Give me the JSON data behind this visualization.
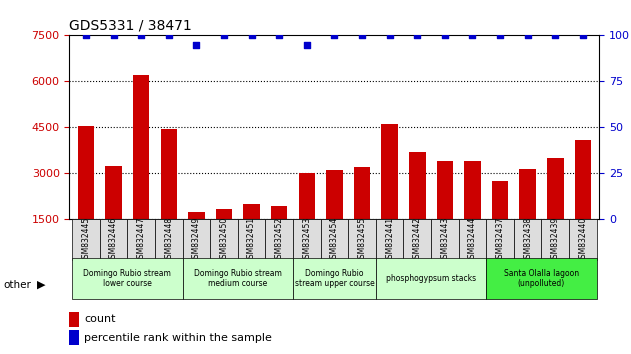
{
  "title": "GDS5331 / 38471",
  "samples": [
    "GSM832445",
    "GSM832446",
    "GSM832447",
    "GSM832448",
    "GSM832449",
    "GSM832450",
    "GSM832451",
    "GSM832452",
    "GSM832453",
    "GSM832454",
    "GSM832455",
    "GSM832441",
    "GSM832442",
    "GSM832443",
    "GSM832444",
    "GSM832437",
    "GSM832438",
    "GSM832439",
    "GSM832440"
  ],
  "counts": [
    4550,
    3250,
    6200,
    4450,
    1750,
    1850,
    2000,
    1950,
    3000,
    3100,
    3200,
    4600,
    3700,
    3400,
    3400,
    2750,
    3150,
    3500,
    4100
  ],
  "percentiles": [
    100,
    100,
    100,
    100,
    95,
    100,
    100,
    100,
    95,
    100,
    100,
    100,
    100,
    100,
    100,
    100,
    100,
    100,
    100
  ],
  "bar_color": "#cc0000",
  "dot_color": "#0000cc",
  "ylim_left": [
    1500,
    7500
  ],
  "ylim_right": [
    0,
    100
  ],
  "yticks_left": [
    1500,
    3000,
    4500,
    6000,
    7500
  ],
  "yticks_right": [
    0,
    25,
    50,
    75,
    100
  ],
  "groups": [
    {
      "label": "Domingo Rubio stream\nlower course",
      "start": 0,
      "end": 3,
      "color": "#ccffcc"
    },
    {
      "label": "Domingo Rubio stream\nmedium course",
      "start": 4,
      "end": 7,
      "color": "#ccffcc"
    },
    {
      "label": "Domingo Rubio\nstream upper course",
      "start": 8,
      "end": 10,
      "color": "#ccffcc"
    },
    {
      "label": "phosphogypsum stacks",
      "start": 11,
      "end": 14,
      "color": "#ccffcc"
    },
    {
      "label": "Santa Olalla lagoon\n(unpolluted)",
      "start": 15,
      "end": 18,
      "color": "#44ee44"
    }
  ],
  "legend_count_label": "count",
  "legend_pct_label": "percentile rank within the sample",
  "other_label": "other"
}
